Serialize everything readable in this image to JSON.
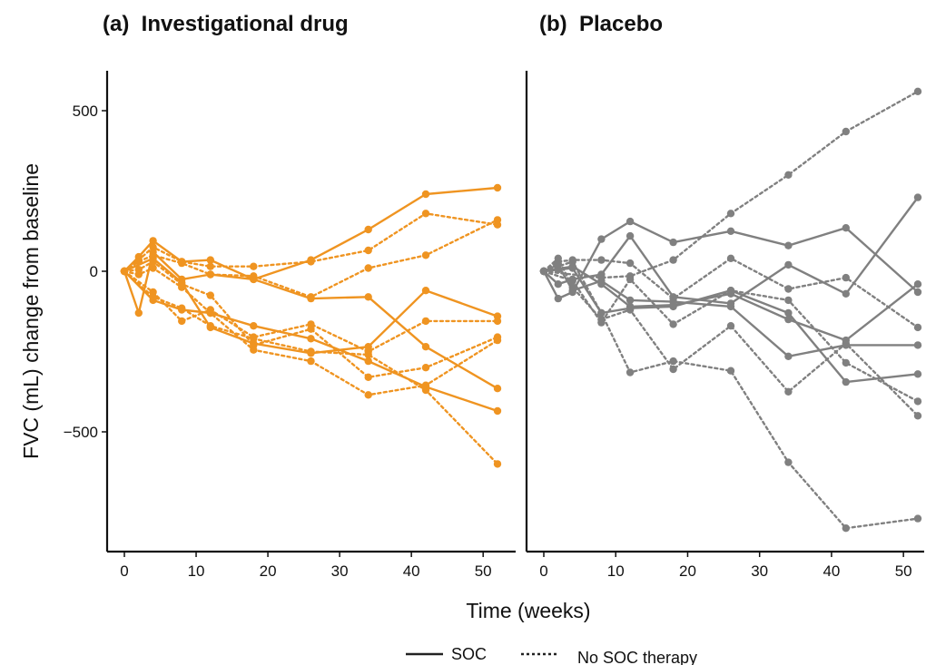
{
  "chart_data": {
    "type": "line",
    "ylabel": "FVC (mL) change from baseline",
    "xlabel": "Time (weeks)",
    "x_ticks": [
      0,
      10,
      20,
      30,
      40,
      50
    ],
    "y_ticks": [
      500,
      0,
      -500
    ],
    "y_tick_labels": [
      "500",
      "0",
      "−500"
    ],
    "xlim": [
      -2,
      53
    ],
    "ylim": [
      -860,
      630
    ],
    "grid": false,
    "legend": {
      "position": "bottom-center",
      "entries": [
        {
          "label": "SOC",
          "style": "solid"
        },
        {
          "label": "No SOC therapy",
          "style": "dotted"
        }
      ]
    },
    "panels": [
      {
        "title": "(a)  Investigational drug",
        "color": "#ef9421",
        "series": [
          {
            "style": "solid",
            "points": [
              [
                0,
                0
              ],
              [
                2,
                45
              ],
              [
                4,
                95
              ],
              [
                8,
                30
              ],
              [
                12,
                35
              ],
              [
                18,
                -25
              ],
              [
                26,
                35
              ],
              [
                34,
                130
              ],
              [
                42,
                240
              ],
              [
                52,
                260
              ]
            ]
          },
          {
            "style": "solid",
            "points": [
              [
                0,
                0
              ],
              [
                2,
                -130
              ],
              [
                4,
                60
              ],
              [
                8,
                -25
              ],
              [
                12,
                -10
              ],
              [
                18,
                -25
              ],
              [
                26,
                -85
              ],
              [
                34,
                -80
              ],
              [
                42,
                -235
              ],
              [
                52,
                -365
              ]
            ]
          },
          {
            "style": "solid",
            "points": [
              [
                0,
                0
              ],
              [
                4,
                -90
              ],
              [
                8,
                -120
              ],
              [
                12,
                -130
              ],
              [
                18,
                -170
              ],
              [
                26,
                -210
              ],
              [
                34,
                -280
              ],
              [
                42,
                -360
              ],
              [
                52,
                -435
              ]
            ]
          },
          {
            "style": "solid",
            "points": [
              [
                0,
                0
              ],
              [
                4,
                40
              ],
              [
                8,
                -35
              ],
              [
                12,
                -175
              ],
              [
                18,
                -225
              ],
              [
                26,
                -255
              ],
              [
                34,
                -235
              ],
              [
                42,
                -60
              ],
              [
                52,
                -140
              ]
            ]
          },
          {
            "style": "dotted",
            "points": [
              [
                0,
                0
              ],
              [
                2,
                35
              ],
              [
                4,
                75
              ],
              [
                8,
                30
              ],
              [
                12,
                15
              ],
              [
                18,
                15
              ],
              [
                26,
                30
              ],
              [
                34,
                65
              ],
              [
                42,
                180
              ],
              [
                52,
                145
              ]
            ]
          },
          {
            "style": "dotted",
            "points": [
              [
                0,
                0
              ],
              [
                2,
                30
              ],
              [
                4,
                50
              ],
              [
                8,
                25
              ],
              [
                12,
                -10
              ],
              [
                18,
                -15
              ],
              [
                26,
                -80
              ],
              [
                34,
                10
              ],
              [
                42,
                50
              ],
              [
                52,
                160
              ]
            ]
          },
          {
            "style": "dotted",
            "points": [
              [
                0,
                0
              ],
              [
                4,
                -65
              ],
              [
                8,
                -155
              ],
              [
                12,
                -120
              ],
              [
                18,
                -205
              ],
              [
                26,
                -165
              ],
              [
                34,
                -250
              ],
              [
                42,
                -155
              ],
              [
                52,
                -155
              ]
            ]
          },
          {
            "style": "dotted",
            "points": [
              [
                0,
                0
              ],
              [
                2,
                5
              ],
              [
                4,
                30
              ],
              [
                8,
                -40
              ],
              [
                12,
                -75
              ],
              [
                18,
                -230
              ],
              [
                26,
                -180
              ],
              [
                34,
                -330
              ],
              [
                42,
                -300
              ],
              [
                52,
                -205
              ]
            ]
          },
          {
            "style": "dotted",
            "points": [
              [
                0,
                0
              ],
              [
                2,
                -10
              ],
              [
                4,
                10
              ],
              [
                8,
                -50
              ],
              [
                12,
                -130
              ],
              [
                18,
                -245
              ],
              [
                26,
                -280
              ],
              [
                34,
                -385
              ],
              [
                42,
                -355
              ],
              [
                52,
                -215
              ]
            ]
          },
          {
            "style": "dotted",
            "points": [
              [
                0,
                0
              ],
              [
                4,
                -80
              ],
              [
                8,
                -115
              ],
              [
                12,
                -170
              ],
              [
                18,
                -210
              ],
              [
                26,
                -250
              ],
              [
                34,
                -260
              ],
              [
                42,
                -370
              ],
              [
                52,
                -600
              ]
            ]
          }
        ]
      },
      {
        "title": "(b)  Placebo",
        "color": "#808080",
        "series": [
          {
            "style": "solid",
            "points": [
              [
                0,
                0
              ],
              [
                2,
                -85
              ],
              [
                4,
                -65
              ],
              [
                8,
                100
              ],
              [
                12,
                155
              ],
              [
                18,
                90
              ],
              [
                26,
                125
              ],
              [
                34,
                80
              ],
              [
                42,
                135
              ],
              [
                52,
                -65
              ]
            ]
          },
          {
            "style": "solid",
            "points": [
              [
                0,
                0
              ],
              [
                2,
                -40
              ],
              [
                4,
                -25
              ],
              [
                8,
                -10
              ],
              [
                12,
                110
              ],
              [
                18,
                -80
              ],
              [
                26,
                -100
              ],
              [
                34,
                20
              ],
              [
                42,
                -70
              ],
              [
                52,
                230
              ]
            ]
          },
          {
            "style": "solid",
            "points": [
              [
                0,
                0
              ],
              [
                2,
                5
              ],
              [
                4,
                10
              ],
              [
                8,
                -130
              ],
              [
                12,
                -115
              ],
              [
                18,
                -110
              ],
              [
                26,
                -60
              ],
              [
                34,
                -130
              ],
              [
                42,
                -345
              ],
              [
                52,
                -320
              ]
            ]
          },
          {
            "style": "solid",
            "points": [
              [
                0,
                0
              ],
              [
                2,
                20
              ],
              [
                4,
                -60
              ],
              [
                8,
                -30
              ],
              [
                12,
                -90
              ],
              [
                18,
                -95
              ],
              [
                26,
                -110
              ],
              [
                34,
                -265
              ],
              [
                42,
                -230
              ],
              [
                52,
                -230
              ]
            ]
          },
          {
            "style": "solid",
            "points": [
              [
                0,
                0
              ],
              [
                4,
                15
              ],
              [
                8,
                -40
              ],
              [
                12,
                -110
              ],
              [
                18,
                -105
              ],
              [
                26,
                -70
              ],
              [
                34,
                -150
              ],
              [
                42,
                -215
              ],
              [
                52,
                -40
              ]
            ]
          },
          {
            "style": "dotted",
            "points": [
              [
                0,
                0
              ],
              [
                8,
                -20
              ],
              [
                12,
                -15
              ],
              [
                18,
                35
              ],
              [
                26,
                180
              ],
              [
                34,
                300
              ],
              [
                42,
                435
              ],
              [
                52,
                560
              ]
            ]
          },
          {
            "style": "dotted",
            "points": [
              [
                0,
                0
              ],
              [
                2,
                30
              ],
              [
                4,
                35
              ],
              [
                8,
                35
              ],
              [
                12,
                25
              ],
              [
                18,
                -85
              ],
              [
                26,
                40
              ],
              [
                34,
                -55
              ],
              [
                42,
                -20
              ],
              [
                52,
                -175
              ]
            ]
          },
          {
            "style": "dotted",
            "points": [
              [
                0,
                0
              ],
              [
                4,
                -30
              ],
              [
                8,
                -160
              ],
              [
                12,
                -25
              ],
              [
                18,
                -165
              ],
              [
                26,
                -60
              ],
              [
                34,
                -90
              ],
              [
                42,
                -285
              ],
              [
                52,
                -405
              ]
            ]
          },
          {
            "style": "dotted",
            "points": [
              [
                0,
                0
              ],
              [
                4,
                30
              ],
              [
                8,
                -130
              ],
              [
                12,
                -315
              ],
              [
                18,
                -280
              ],
              [
                26,
                -310
              ],
              [
                34,
                -595
              ],
              [
                42,
                -800
              ],
              [
                52,
                -770
              ]
            ]
          },
          {
            "style": "dotted",
            "points": [
              [
                0,
                0
              ],
              [
                2,
                40
              ],
              [
                4,
                -50
              ],
              [
                8,
                -150
              ],
              [
                12,
                -120
              ],
              [
                18,
                -305
              ],
              [
                26,
                -170
              ],
              [
                34,
                -375
              ],
              [
                42,
                -225
              ],
              [
                52,
                -450
              ]
            ]
          }
        ]
      }
    ]
  }
}
